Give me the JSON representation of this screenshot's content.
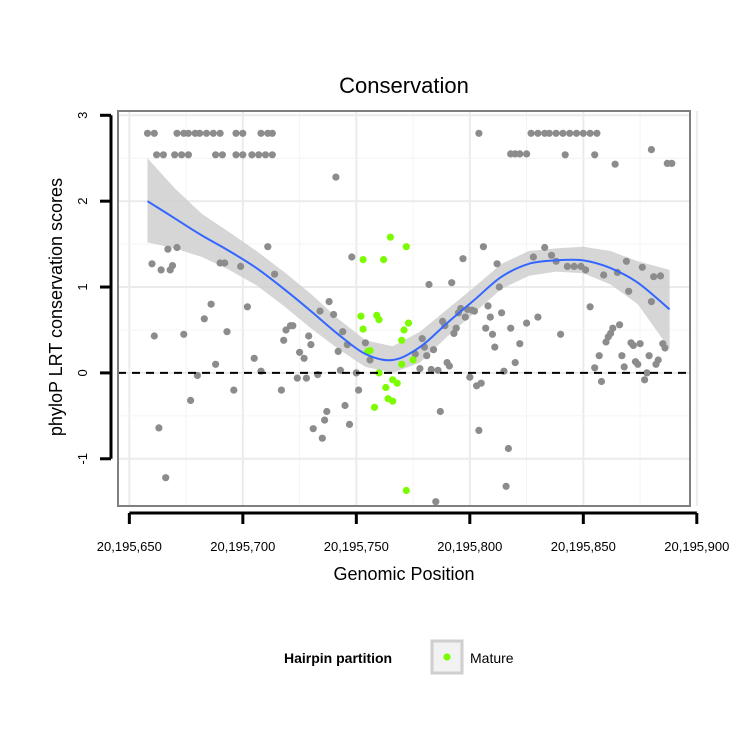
{
  "chart_data": {
    "type": "scatter",
    "title": "Conservation",
    "xlabel": "Genomic Position",
    "ylabel": "phyloP LRT conservation scores",
    "xlim": [
      20195645,
      20195897
    ],
    "ylim": [
      -1.55,
      3.05
    ],
    "x_ticks": [
      20195650,
      20195700,
      20195750,
      20195800,
      20195850,
      20195900
    ],
    "x_tick_labels": [
      "20,195,650",
      "20,195,700",
      "20,195,750",
      "20,195,800",
      "20,195,850",
      "20,195,900"
    ],
    "y_ticks": [
      -1,
      0,
      1,
      2,
      3
    ],
    "y_tick_labels": [
      "-1",
      "0",
      "1",
      "2",
      "3"
    ],
    "grid": true,
    "reference_line": {
      "y": 0,
      "style": "dashed"
    },
    "legend": {
      "title": "Hairpin partition",
      "position": "bottom",
      "entries": [
        "Mature"
      ]
    },
    "colors": {
      "other": "#8c8c8c",
      "mature": "#7cfc00",
      "smooth": "#3366ff",
      "ribbon": "#cfcfcf",
      "grid": "#ebebeb",
      "panel_border": "#7f7f7f"
    },
    "series": [
      {
        "name": "Mature",
        "points": [
          [
            20195753,
            1.32
          ],
          [
            20195759,
            0.67
          ],
          [
            20195762,
            1.32
          ],
          [
            20195752,
            0.66
          ],
          [
            20195753,
            0.51
          ],
          [
            20195756,
            0.26
          ],
          [
            20195760,
            0.62
          ],
          [
            20195755,
            0.25
          ],
          [
            20195765,
            1.58
          ],
          [
            20195770,
            0.38
          ],
          [
            20195772,
            1.47
          ],
          [
            20195773,
            0.58
          ],
          [
            20195775,
            0.15
          ],
          [
            20195771,
            0.5
          ],
          [
            20195760,
            0.0
          ],
          [
            20195763,
            -0.17
          ],
          [
            20195766,
            -0.08
          ],
          [
            20195768,
            -0.12
          ],
          [
            20195770,
            0.1
          ],
          [
            20195764,
            -0.3
          ],
          [
            20195766,
            -0.33
          ],
          [
            20195758,
            -0.4
          ],
          [
            20195772,
            -1.37
          ]
        ]
      },
      {
        "name": "other",
        "points": [
          [
            20195658,
            2.79
          ],
          [
            20195661,
            2.79
          ],
          [
            20195662,
            2.54
          ],
          [
            20195665,
            2.54
          ],
          [
            20195671,
            2.79
          ],
          [
            20195674,
            2.79
          ],
          [
            20195676,
            2.79
          ],
          [
            20195679,
            2.79
          ],
          [
            20195681,
            2.79
          ],
          [
            20195684,
            2.79
          ],
          [
            20195687,
            2.79
          ],
          [
            20195690,
            2.79
          ],
          [
            20195670,
            2.54
          ],
          [
            20195673,
            2.54
          ],
          [
            20195676,
            2.54
          ],
          [
            20195688,
            2.54
          ],
          [
            20195691,
            2.54
          ],
          [
            20195697,
            2.54
          ],
          [
            20195700,
            2.54
          ],
          [
            20195704,
            2.54
          ],
          [
            20195707,
            2.54
          ],
          [
            20195710,
            2.54
          ],
          [
            20195713,
            2.54
          ],
          [
            20195697,
            2.79
          ],
          [
            20195700,
            2.79
          ],
          [
            20195708,
            2.79
          ],
          [
            20195711,
            2.79
          ],
          [
            20195713,
            2.79
          ],
          [
            20195804,
            2.79
          ],
          [
            20195818,
            2.55
          ],
          [
            20195820,
            2.55
          ],
          [
            20195822,
            2.55
          ],
          [
            20195825,
            2.55
          ],
          [
            20195827,
            2.79
          ],
          [
            20195830,
            2.79
          ],
          [
            20195833,
            2.79
          ],
          [
            20195835,
            2.79
          ],
          [
            20195838,
            2.79
          ],
          [
            20195841,
            2.79
          ],
          [
            20195844,
            2.79
          ],
          [
            20195847,
            2.79
          ],
          [
            20195850,
            2.79
          ],
          [
            20195853,
            2.79
          ],
          [
            20195856,
            2.79
          ],
          [
            20195842,
            2.54
          ],
          [
            20195855,
            2.54
          ],
          [
            20195880,
            2.6
          ],
          [
            20195864,
            2.43
          ],
          [
            20195887,
            2.44
          ],
          [
            20195889,
            2.44
          ],
          [
            20195660,
            1.27
          ],
          [
            20195661,
            0.43
          ],
          [
            20195663,
            -0.64
          ],
          [
            20195664,
            1.2
          ],
          [
            20195666,
            -1.22
          ],
          [
            20195667,
            1.44
          ],
          [
            20195668,
            1.2
          ],
          [
            20195669,
            1.25
          ],
          [
            20195671,
            1.46
          ],
          [
            20195674,
            0.45
          ],
          [
            20195677,
            -0.32
          ],
          [
            20195680,
            -0.03
          ],
          [
            20195683,
            0.63
          ],
          [
            20195686,
            0.8
          ],
          [
            20195688,
            0.1
          ],
          [
            20195690,
            1.28
          ],
          [
            20195692,
            1.28
          ],
          [
            20195693,
            0.48
          ],
          [
            20195696,
            -0.2
          ],
          [
            20195699,
            1.24
          ],
          [
            20195702,
            0.77
          ],
          [
            20195705,
            0.17
          ],
          [
            20195708,
            0.02
          ],
          [
            20195711,
            1.47
          ],
          [
            20195714,
            1.15
          ],
          [
            20195717,
            -0.2
          ],
          [
            20195718,
            0.38
          ],
          [
            20195719,
            0.5
          ],
          [
            20195721,
            0.55
          ],
          [
            20195722,
            0.55
          ],
          [
            20195724,
            -0.06
          ],
          [
            20195725,
            0.24
          ],
          [
            20195727,
            0.17
          ],
          [
            20195728,
            -0.06
          ],
          [
            20195729,
            0.43
          ],
          [
            20195730,
            0.33
          ],
          [
            20195731,
            -0.65
          ],
          [
            20195733,
            -0.02
          ],
          [
            20195734,
            0.72
          ],
          [
            20195735,
            -0.76
          ],
          [
            20195736,
            -0.55
          ],
          [
            20195737,
            -0.45
          ],
          [
            20195738,
            0.83
          ],
          [
            20195740,
            0.68
          ],
          [
            20195741,
            2.28
          ],
          [
            20195742,
            0.25
          ],
          [
            20195743,
            0.03
          ],
          [
            20195744,
            0.48
          ],
          [
            20195745,
            -0.38
          ],
          [
            20195746,
            0.33
          ],
          [
            20195747,
            -0.6
          ],
          [
            20195748,
            1.35
          ],
          [
            20195750,
            -0.0
          ],
          [
            20195751,
            -0.2
          ],
          [
            20195754,
            0.35
          ],
          [
            20195756,
            0.15
          ],
          [
            20195776,
            0.22
          ],
          [
            20195778,
            0.05
          ],
          [
            20195779,
            0.4
          ],
          [
            20195780,
            0.3
          ],
          [
            20195781,
            0.2
          ],
          [
            20195782,
            1.03
          ],
          [
            20195783,
            0.04
          ],
          [
            20195784,
            0.27
          ],
          [
            20195785,
            -1.5
          ],
          [
            20195786,
            0.03
          ],
          [
            20195787,
            -0.45
          ],
          [
            20195788,
            0.6
          ],
          [
            20195789,
            0.55
          ],
          [
            20195790,
            0.12
          ],
          [
            20195791,
            0.08
          ],
          [
            20195792,
            1.05
          ],
          [
            20195793,
            0.46
          ],
          [
            20195794,
            0.52
          ],
          [
            20195795,
            0.7
          ],
          [
            20195796,
            0.75
          ],
          [
            20195797,
            1.33
          ],
          [
            20195798,
            0.65
          ],
          [
            20195799,
            0.74
          ],
          [
            20195800,
            -0.05
          ],
          [
            20195801,
            0.73
          ],
          [
            20195802,
            0.72
          ],
          [
            20195803,
            -0.15
          ],
          [
            20195804,
            -0.67
          ],
          [
            20195805,
            -0.12
          ],
          [
            20195806,
            1.47
          ],
          [
            20195807,
            0.52
          ],
          [
            20195808,
            0.78
          ],
          [
            20195809,
            0.65
          ],
          [
            20195810,
            0.45
          ],
          [
            20195811,
            0.3
          ],
          [
            20195812,
            1.27
          ],
          [
            20195813,
            1.0
          ],
          [
            20195814,
            0.7
          ],
          [
            20195815,
            0.02
          ],
          [
            20195816,
            -1.32
          ],
          [
            20195817,
            -0.88
          ],
          [
            20195818,
            0.52
          ],
          [
            20195820,
            0.12
          ],
          [
            20195822,
            0.34
          ],
          [
            20195825,
            0.58
          ],
          [
            20195828,
            1.35
          ],
          [
            20195830,
            0.65
          ],
          [
            20195833,
            1.46
          ],
          [
            20195836,
            1.37
          ],
          [
            20195838,
            1.3
          ],
          [
            20195840,
            0.45
          ],
          [
            20195843,
            1.24
          ],
          [
            20195846,
            1.24
          ],
          [
            20195849,
            1.24
          ],
          [
            20195851,
            1.2
          ],
          [
            20195853,
            0.77
          ],
          [
            20195855,
            0.06
          ],
          [
            20195857,
            0.2
          ],
          [
            20195858,
            -0.1
          ],
          [
            20195859,
            1.14
          ],
          [
            20195860,
            0.36
          ],
          [
            20195861,
            0.42
          ],
          [
            20195862,
            0.46
          ],
          [
            20195863,
            0.52
          ],
          [
            20195865,
            1.17
          ],
          [
            20195866,
            0.56
          ],
          [
            20195867,
            0.2
          ],
          [
            20195868,
            0.07
          ],
          [
            20195869,
            1.3
          ],
          [
            20195870,
            0.95
          ],
          [
            20195871,
            0.35
          ],
          [
            20195872,
            0.32
          ],
          [
            20195873,
            0.13
          ],
          [
            20195874,
            0.1
          ],
          [
            20195875,
            0.34
          ],
          [
            20195876,
            1.23
          ],
          [
            20195877,
            -0.08
          ],
          [
            20195878,
            0.0
          ],
          [
            20195879,
            0.2
          ],
          [
            20195880,
            0.83
          ],
          [
            20195881,
            1.12
          ],
          [
            20195882,
            0.1
          ],
          [
            20195883,
            0.15
          ],
          [
            20195884,
            1.13
          ],
          [
            20195885,
            0.34
          ],
          [
            20195886,
            0.29
          ]
        ]
      }
    ],
    "smooth": {
      "x": [
        20195658,
        20195670,
        20195682,
        20195694,
        20195706,
        20195718,
        20195730,
        20195742,
        20195754,
        20195766,
        20195778,
        20195790,
        20195802,
        20195814,
        20195826,
        20195838,
        20195850,
        20195862,
        20195874,
        20195888
      ],
      "y": [
        2.0,
        1.8,
        1.6,
        1.42,
        1.22,
        0.98,
        0.72,
        0.45,
        0.22,
        0.15,
        0.3,
        0.58,
        0.85,
        1.12,
        1.27,
        1.31,
        1.31,
        1.22,
        1.05,
        0.74
      ],
      "ci_low": [
        1.52,
        1.45,
        1.35,
        1.2,
        1.02,
        0.78,
        0.52,
        0.28,
        0.07,
        0.0,
        0.12,
        0.42,
        0.7,
        0.98,
        1.13,
        1.18,
        1.16,
        1.03,
        0.8,
        0.28
      ],
      "ci_high": [
        2.5,
        2.15,
        1.85,
        1.64,
        1.42,
        1.18,
        0.92,
        0.63,
        0.38,
        0.31,
        0.48,
        0.74,
        1.0,
        1.27,
        1.42,
        1.45,
        1.47,
        1.42,
        1.3,
        1.2
      ]
    }
  }
}
